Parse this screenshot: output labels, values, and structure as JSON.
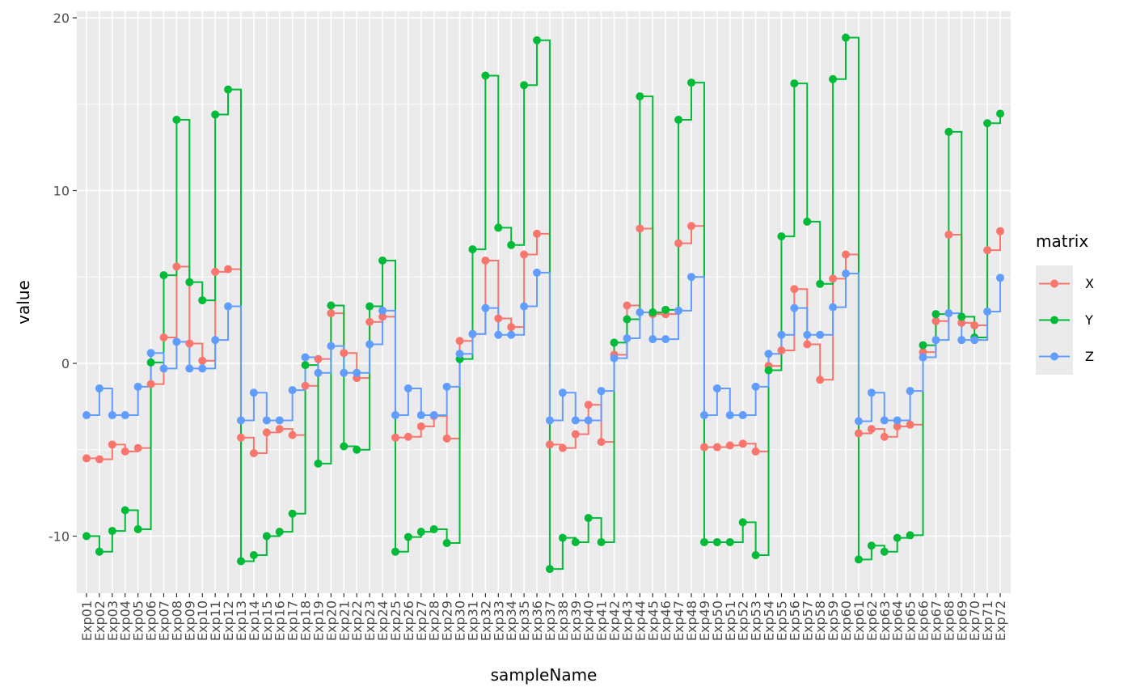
{
  "chart_data": {
    "type": "line",
    "step": true,
    "points": true,
    "xlabel": "sampleName",
    "ylabel": "value",
    "ylim": [
      -13.3,
      20.4
    ],
    "yticks": [
      -10,
      0,
      10,
      20
    ],
    "grid": true,
    "legend": {
      "title": "matrix",
      "position": "right"
    },
    "categories": [
      "Exp01",
      "Exp02",
      "Exp03",
      "Exp04",
      "Exp05",
      "Exp06",
      "Exp07",
      "Exp08",
      "Exp09",
      "Exp10",
      "Exp11",
      "Exp12",
      "Exp13",
      "Exp14",
      "Exp15",
      "Exp16",
      "Exp17",
      "Exp18",
      "Exp19",
      "Exp20",
      "Exp21",
      "Exp22",
      "Exp23",
      "Exp24",
      "Exp25",
      "Exp26",
      "Exp27",
      "Exp28",
      "Exp29",
      "Exp30",
      "Exp31",
      "Exp32",
      "Exp33",
      "Exp34",
      "Exp35",
      "Exp36",
      "Exp37",
      "Exp38",
      "Exp39",
      "Exp40",
      "Exp41",
      "Exp42",
      "Exp43",
      "Exp44",
      "Exp45",
      "Exp46",
      "Exp47",
      "Exp48",
      "Exp49",
      "Exp50",
      "Exp51",
      "Exp52",
      "Exp53",
      "Exp54",
      "Exp55",
      "Exp56",
      "Exp57",
      "Exp58",
      "Exp59",
      "Exp60",
      "Exp61",
      "Exp62",
      "Exp63",
      "Exp64",
      "Exp65",
      "Exp66",
      "Exp67",
      "Exp68",
      "Exp69",
      "Exp70",
      "Exp71",
      "Exp72"
    ],
    "series": [
      {
        "name": "X",
        "color": "#F8766D",
        "values": [
          -5.5,
          -5.55,
          -4.7,
          -5.1,
          -4.9,
          -1.2,
          1.5,
          5.6,
          1.15,
          0.15,
          5.3,
          5.45,
          -4.3,
          -5.2,
          -4.0,
          -3.8,
          -4.15,
          -1.3,
          0.25,
          2.9,
          0.6,
          -0.85,
          2.4,
          2.7,
          -4.3,
          -4.25,
          -3.65,
          -3.05,
          -4.35,
          1.3,
          1.7,
          5.95,
          2.6,
          2.1,
          6.3,
          7.5,
          -4.7,
          -4.9,
          -4.1,
          -2.4,
          -4.55,
          0.5,
          3.35,
          7.8,
          2.85,
          2.85,
          6.95,
          7.95,
          -4.85,
          -4.85,
          -4.75,
          -4.65,
          -5.1,
          -0.15,
          0.75,
          4.3,
          1.1,
          -0.95,
          4.9,
          6.3,
          -4.05,
          -3.8,
          -4.25,
          -3.65,
          -3.55,
          0.65,
          2.45,
          7.45,
          2.35,
          2.2,
          6.55,
          7.65
        ]
      },
      {
        "name": "Y",
        "color": "#00BA38",
        "values": [
          -10.0,
          -10.9,
          -9.7,
          -8.5,
          -9.6,
          0.05,
          5.1,
          14.1,
          4.7,
          3.65,
          14.4,
          15.85,
          -11.45,
          -11.1,
          -10.0,
          -9.75,
          -8.7,
          -0.1,
          -5.8,
          3.35,
          -4.8,
          -5.0,
          3.3,
          5.95,
          -10.9,
          -10.05,
          -9.75,
          -9.6,
          -10.4,
          0.25,
          6.6,
          16.65,
          7.85,
          6.85,
          16.1,
          18.7,
          -11.9,
          -10.1,
          -10.35,
          -8.95,
          -10.35,
          1.2,
          2.55,
          15.45,
          2.95,
          3.1,
          14.1,
          16.25,
          -10.35,
          -10.35,
          -10.35,
          -9.2,
          -11.1,
          -0.4,
          7.35,
          16.2,
          8.2,
          4.6,
          16.45,
          18.85,
          -11.35,
          -10.55,
          -10.9,
          -10.1,
          -9.95,
          1.05,
          2.85,
          13.4,
          2.7,
          1.5,
          13.9,
          14.45
        ]
      },
      {
        "name": "Z",
        "color": "#619CFF",
        "values": [
          -3.0,
          -1.45,
          -3.0,
          -3.0,
          -1.35,
          0.6,
          -0.3,
          1.25,
          -0.3,
          -0.3,
          1.35,
          3.3,
          -3.3,
          -1.7,
          -3.3,
          -3.3,
          -1.55,
          0.35,
          -0.55,
          1.0,
          -0.55,
          -0.55,
          1.1,
          3.05,
          -3.0,
          -1.45,
          -3.0,
          -3.0,
          -1.35,
          0.55,
          1.7,
          3.2,
          1.65,
          1.65,
          3.3,
          5.25,
          -3.3,
          -1.7,
          -3.3,
          -3.3,
          -1.6,
          0.3,
          1.45,
          2.95,
          1.4,
          1.4,
          3.05,
          5.0,
          -3.0,
          -1.45,
          -3.0,
          -3.0,
          -1.35,
          0.55,
          1.65,
          3.2,
          1.65,
          1.65,
          3.25,
          5.2,
          -3.35,
          -1.7,
          -3.3,
          -3.3,
          -1.6,
          0.35,
          1.35,
          2.9,
          1.35,
          1.35,
          3.0,
          4.95
        ]
      }
    ]
  }
}
